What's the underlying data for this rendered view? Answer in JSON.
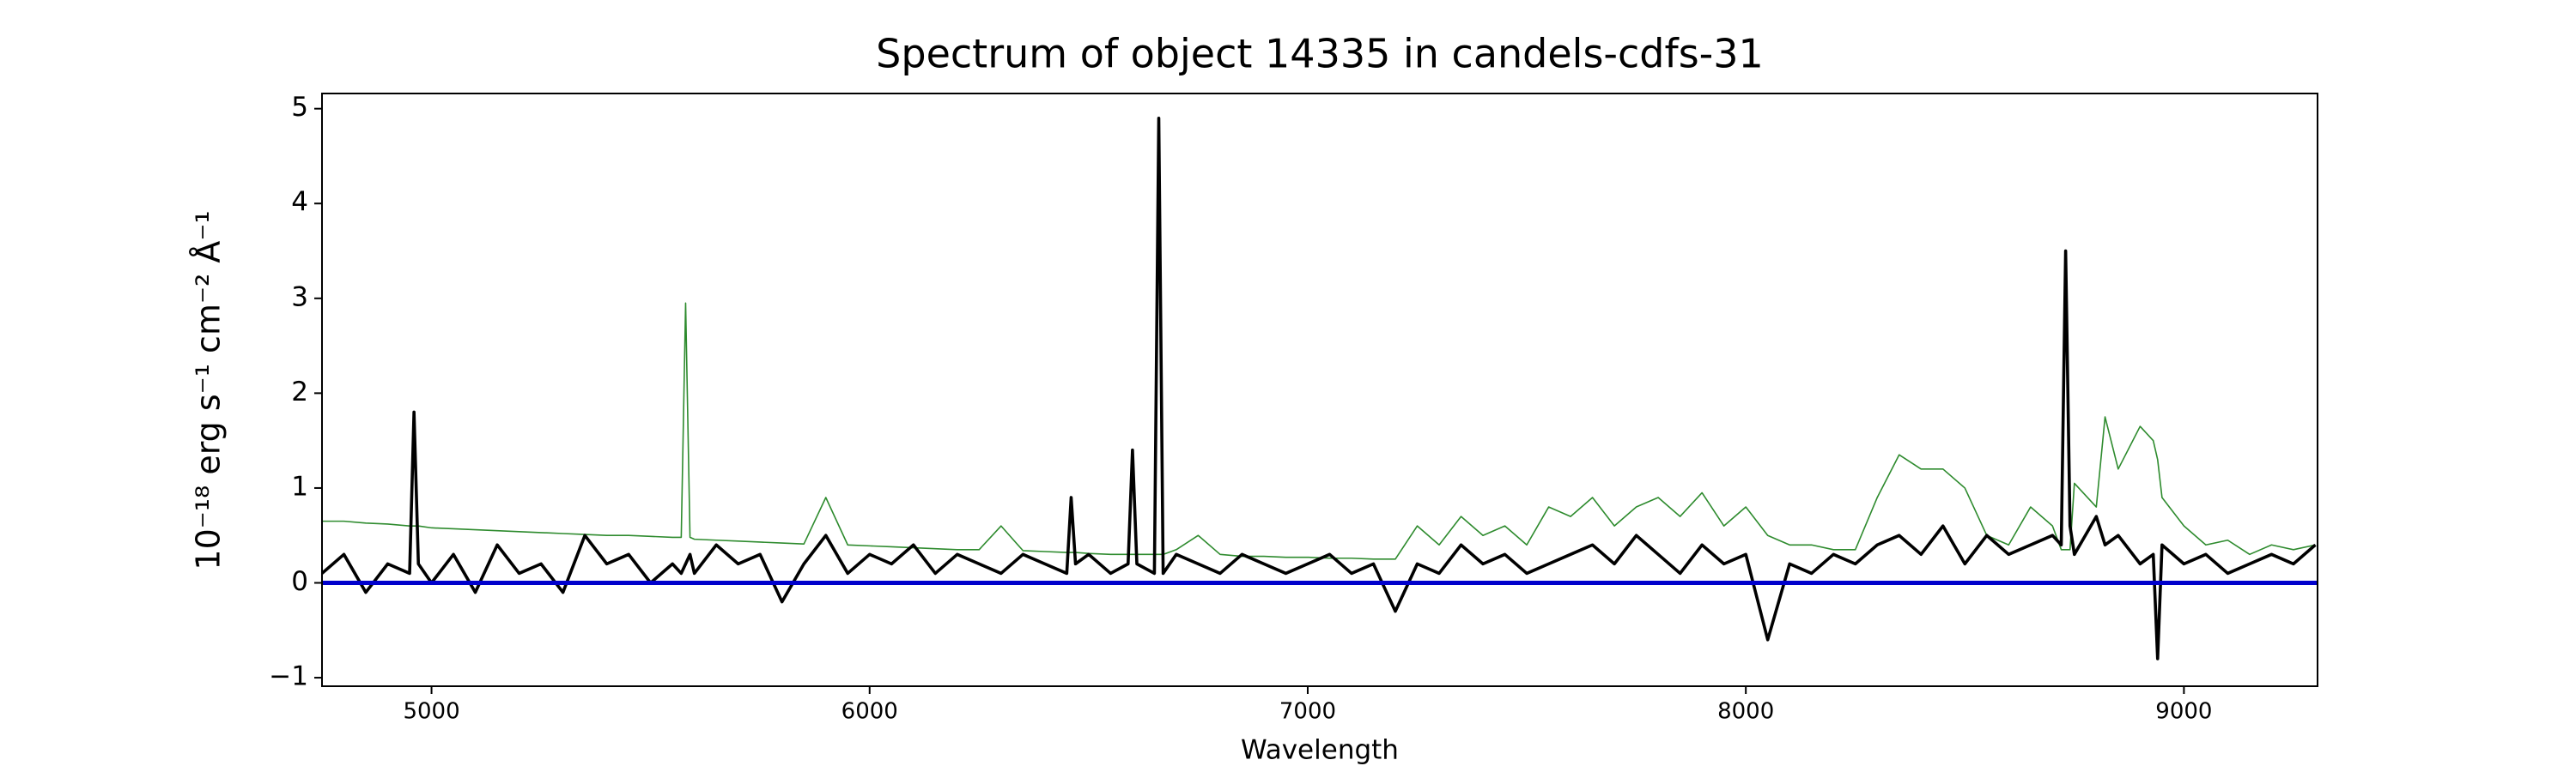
{
  "chart_data": {
    "type": "line",
    "title": "Spectrum of object 14335 in candels-cdfs-31",
    "x_label": "Wavelength",
    "y_label": "10⁻¹⁸ erg s⁻¹ cm⁻² Å⁻¹",
    "x": [
      4750,
      4800,
      4850,
      4900,
      4950,
      4960,
      4970,
      5000,
      5050,
      5100,
      5150,
      5200,
      5250,
      5300,
      5350,
      5400,
      5450,
      5500,
      5550,
      5570,
      5580,
      5590,
      5600,
      5650,
      5700,
      5750,
      5800,
      5850,
      5900,
      5950,
      6000,
      6050,
      6100,
      6150,
      6200,
      6250,
      6300,
      6350,
      6400,
      6450,
      6460,
      6470,
      6500,
      6550,
      6590,
      6600,
      6610,
      6650,
      6660,
      6670,
      6700,
      6750,
      6800,
      6850,
      6900,
      6950,
      7000,
      7050,
      7100,
      7150,
      7200,
      7250,
      7300,
      7350,
      7400,
      7450,
      7500,
      7550,
      7600,
      7650,
      7700,
      7750,
      7800,
      7850,
      7900,
      7950,
      8000,
      8050,
      8100,
      8150,
      8200,
      8250,
      8300,
      8350,
      8400,
      8450,
      8500,
      8550,
      8600,
      8650,
      8700,
      8720,
      8730,
      8740,
      8750,
      8800,
      8820,
      8850,
      8900,
      8930,
      8940,
      8950,
      9000,
      9050,
      9100,
      9150,
      9200,
      9250,
      9300
    ],
    "series": [
      {
        "color": "#2e8b2e",
        "width": 1.6,
        "values": [
          0.65,
          0.65,
          0.63,
          0.62,
          0.6,
          0.6,
          0.6,
          0.58,
          0.57,
          0.56,
          0.55,
          0.54,
          0.53,
          0.52,
          0.51,
          0.5,
          0.5,
          0.49,
          0.48,
          0.48,
          2.95,
          0.48,
          0.46,
          0.45,
          0.44,
          0.43,
          0.42,
          0.41,
          0.9,
          0.4,
          0.39,
          0.38,
          0.37,
          0.36,
          0.35,
          0.35,
          0.6,
          0.34,
          0.33,
          0.32,
          0.32,
          0.32,
          0.31,
          0.3,
          0.3,
          0.3,
          0.3,
          0.3,
          0.3,
          0.3,
          0.35,
          0.5,
          0.3,
          0.28,
          0.28,
          0.27,
          0.27,
          0.26,
          0.26,
          0.25,
          0.25,
          0.6,
          0.4,
          0.7,
          0.5,
          0.6,
          0.4,
          0.8,
          0.7,
          0.9,
          0.6,
          0.8,
          0.9,
          0.7,
          0.95,
          0.6,
          0.8,
          0.5,
          0.4,
          0.4,
          0.35,
          0.35,
          0.9,
          1.35,
          1.2,
          1.2,
          1.0,
          0.5,
          0.4,
          0.8,
          0.6,
          0.35,
          0.35,
          0.35,
          1.05,
          0.8,
          1.75,
          1.2,
          1.65,
          1.5,
          1.3,
          0.9,
          0.6,
          0.4,
          0.45,
          0.3,
          0.4,
          0.35,
          0.4
        ]
      },
      {
        "color": "#000000",
        "width": 3.6,
        "values": [
          0.1,
          0.3,
          -0.1,
          0.2,
          0.1,
          1.8,
          0.2,
          0.0,
          0.3,
          -0.1,
          0.4,
          0.1,
          0.2,
          -0.1,
          0.5,
          0.2,
          0.3,
          0.0,
          0.2,
          0.1,
          0.2,
          0.3,
          0.1,
          0.4,
          0.2,
          0.3,
          -0.2,
          0.2,
          0.5,
          0.1,
          0.3,
          0.2,
          0.4,
          0.1,
          0.3,
          0.2,
          0.1,
          0.3,
          0.2,
          0.1,
          0.9,
          0.2,
          0.3,
          0.1,
          0.2,
          1.4,
          0.2,
          0.1,
          4.9,
          0.1,
          0.3,
          0.2,
          0.1,
          0.3,
          0.2,
          0.1,
          0.2,
          0.3,
          0.1,
          0.2,
          -0.3,
          0.2,
          0.1,
          0.4,
          0.2,
          0.3,
          0.1,
          0.2,
          0.3,
          0.4,
          0.2,
          0.5,
          0.3,
          0.1,
          0.4,
          0.2,
          0.3,
          -0.6,
          0.2,
          0.1,
          0.3,
          0.2,
          0.4,
          0.5,
          0.3,
          0.6,
          0.2,
          0.5,
          0.3,
          0.4,
          0.5,
          0.4,
          3.5,
          0.6,
          0.3,
          0.7,
          0.4,
          0.5,
          0.2,
          0.3,
          -0.8,
          0.4,
          0.2,
          0.3,
          0.1,
          0.2,
          0.3,
          0.2,
          0.4
        ]
      },
      {
        "color": "#0000cc",
        "width": 5,
        "x": [
          4750,
          9305
        ],
        "values": [
          0,
          0
        ]
      }
    ],
    "xlim": [
      4750,
      9305
    ],
    "ylim": [
      -1.09,
      5.16
    ],
    "xticks": [
      5000,
      6000,
      7000,
      8000,
      9000
    ],
    "yticks": [
      {
        "value": -1,
        "label": "−1"
      },
      0,
      1,
      2,
      3,
      4,
      5
    ],
    "grid": false
  }
}
